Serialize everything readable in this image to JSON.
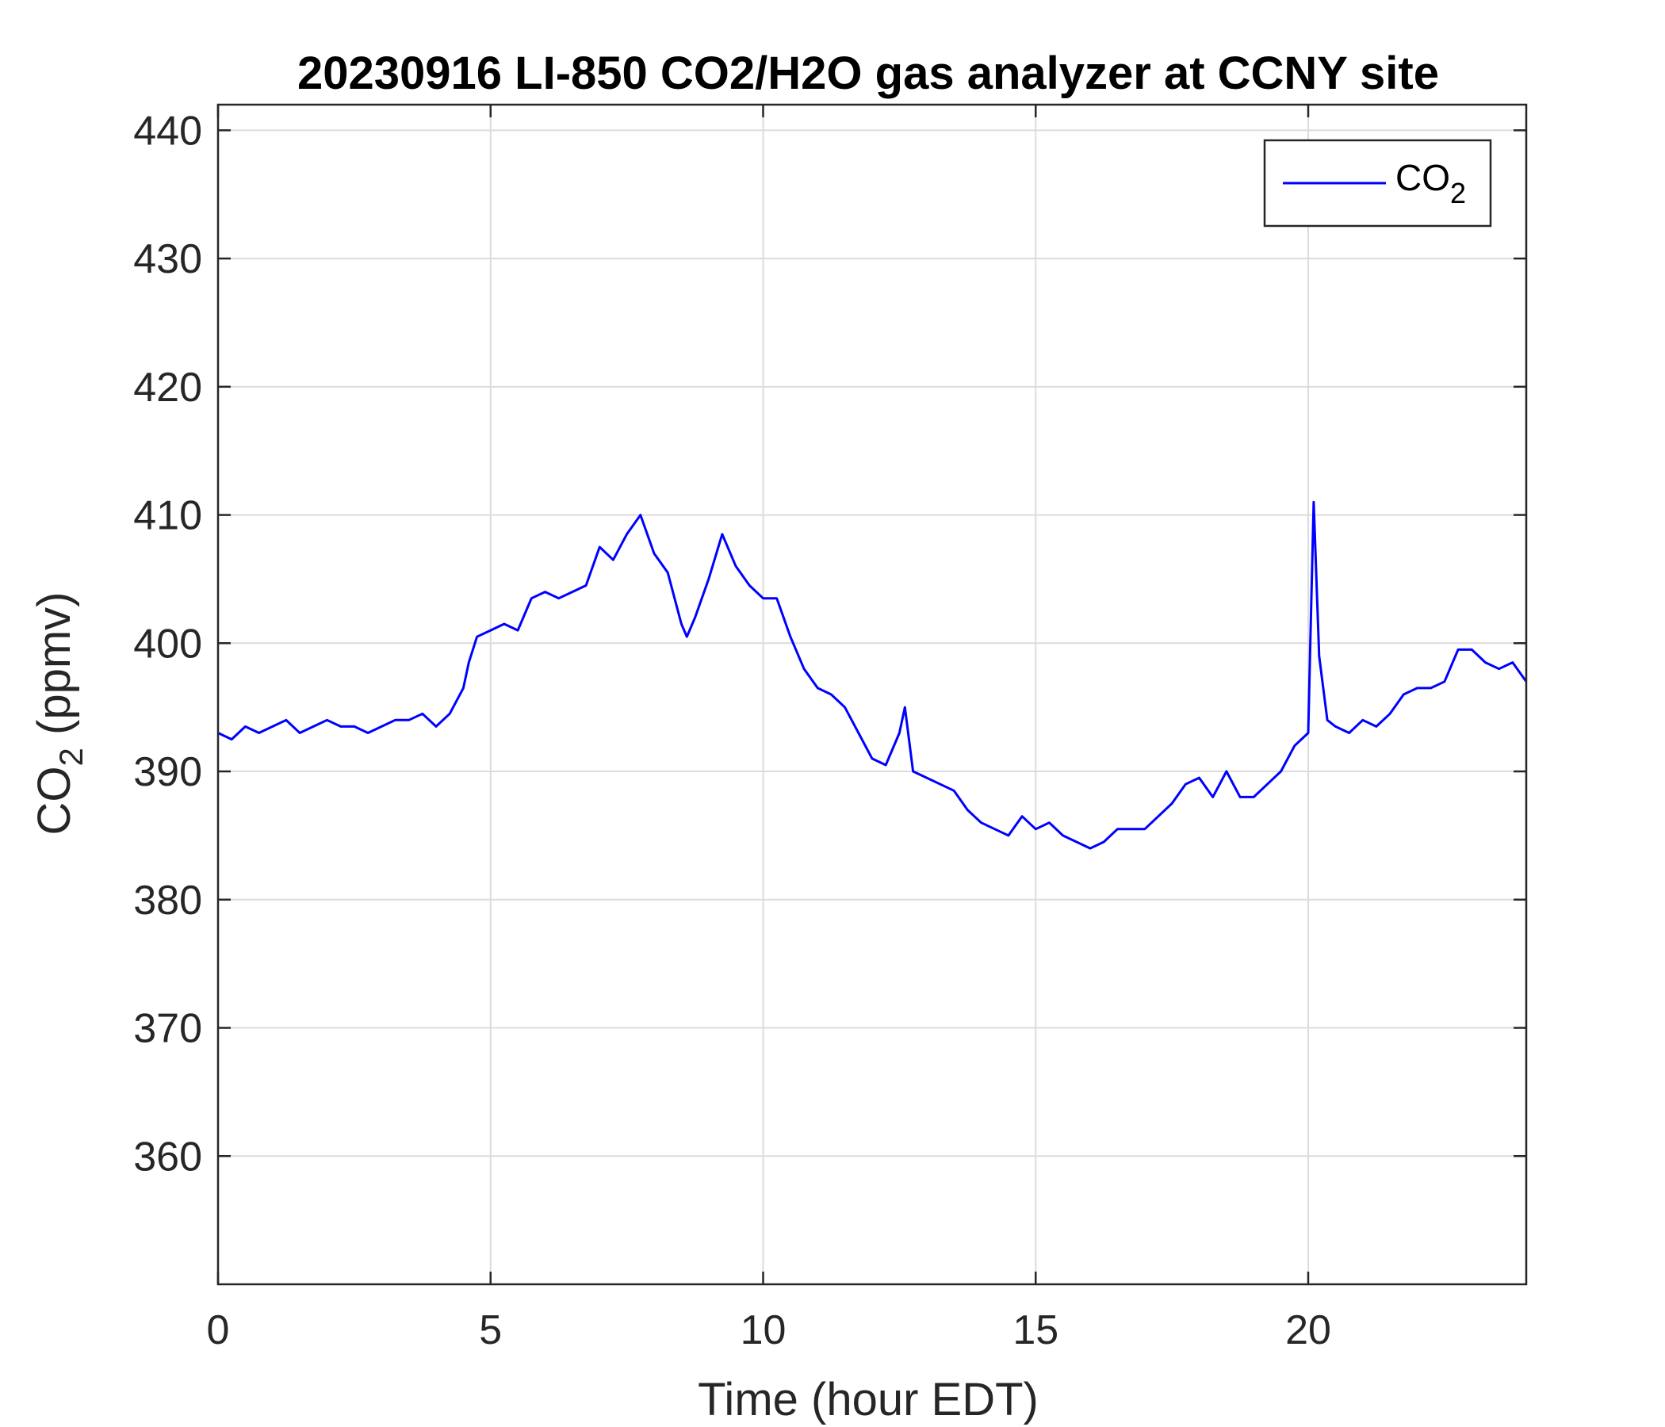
{
  "chart_data": {
    "type": "line",
    "title": "20230916 LI-850 CO2/H2O gas analyzer at CCNY site",
    "xlabel": "Time (hour EDT)",
    "ylabel": {
      "base": "CO",
      "sub": "2",
      "rest": " (ppmv)"
    },
    "xlim": [
      0,
      24
    ],
    "ylim": [
      350,
      442
    ],
    "xticks": [
      0,
      5,
      10,
      15,
      20
    ],
    "yticks": [
      360,
      370,
      380,
      390,
      400,
      410,
      420,
      430,
      440
    ],
    "grid": true,
    "legend_position": "top-right",
    "series": [
      {
        "legend": {
          "base": "CO",
          "sub": "2"
        },
        "color": "#0000ff",
        "x": [
          0,
          0.25,
          0.5,
          0.75,
          1.0,
          1.25,
          1.5,
          1.75,
          2.0,
          2.25,
          2.5,
          2.75,
          3.0,
          3.25,
          3.5,
          3.75,
          4.0,
          4.25,
          4.5,
          4.6,
          4.75,
          5.0,
          5.25,
          5.5,
          5.75,
          6.0,
          6.25,
          6.5,
          6.75,
          7.0,
          7.25,
          7.5,
          7.75,
          8.0,
          8.25,
          8.5,
          8.6,
          8.75,
          9.0,
          9.25,
          9.5,
          9.75,
          10.0,
          10.25,
          10.5,
          10.75,
          11.0,
          11.25,
          11.5,
          11.75,
          12.0,
          12.25,
          12.5,
          12.6,
          12.75,
          13.0,
          13.25,
          13.5,
          13.75,
          14.0,
          14.25,
          14.5,
          14.75,
          15.0,
          15.25,
          15.5,
          15.75,
          16.0,
          16.25,
          16.5,
          16.75,
          17.0,
          17.25,
          17.5,
          17.75,
          18.0,
          18.25,
          18.5,
          18.75,
          19.0,
          19.25,
          19.5,
          19.75,
          20.0,
          20.05,
          20.1,
          20.2,
          20.35,
          20.5,
          20.75,
          21.0,
          21.25,
          21.5,
          21.75,
          22.0,
          22.25,
          22.5,
          22.75,
          23.0,
          23.25,
          23.5,
          23.75,
          24.0
        ],
        "y": [
          393,
          392.5,
          393.5,
          393,
          393.5,
          394,
          393,
          393.5,
          394,
          393.5,
          393.5,
          393,
          393.5,
          394,
          394,
          394.5,
          393.5,
          394.5,
          396.5,
          398.5,
          400.5,
          401,
          401.5,
          401,
          403.5,
          404,
          403.5,
          404,
          404.5,
          407.5,
          406.5,
          408.5,
          410,
          407,
          405.5,
          401.5,
          400.5,
          402,
          405,
          408.5,
          406,
          404.5,
          403.5,
          403.5,
          400.5,
          398,
          396.5,
          396,
          395,
          393,
          391,
          390.5,
          393,
          395,
          390,
          389.5,
          389,
          388.5,
          387,
          386,
          385.5,
          385,
          386.5,
          385.5,
          386,
          385,
          384.5,
          384,
          384.5,
          385.5,
          385.5,
          385.5,
          386.5,
          387.5,
          389,
          389.5,
          388,
          390,
          388,
          388,
          389,
          390,
          392,
          393,
          402,
          411,
          399,
          394,
          393.5,
          393,
          394,
          393.5,
          394.5,
          396,
          396.5,
          396.5,
          397,
          399.5,
          399.5,
          398.5,
          398,
          398.5,
          397
        ]
      }
    ]
  }
}
